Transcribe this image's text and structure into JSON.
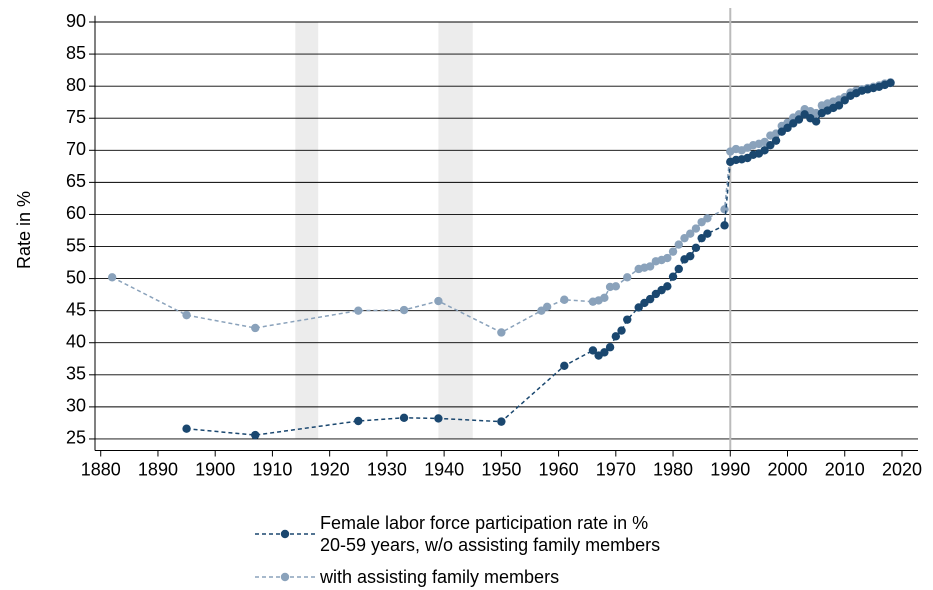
{
  "chart_data": {
    "type": "line",
    "y_label": "Rate in %",
    "xlim": [
      1879,
      2022.8
    ],
    "ylim": [
      23.2,
      90.5
    ],
    "xticks": [
      1880,
      1890,
      1900,
      1910,
      1920,
      1930,
      1940,
      1950,
      1960,
      1970,
      1980,
      1990,
      2000,
      2010,
      2020
    ],
    "yticks": [
      25,
      30,
      35,
      40,
      45,
      50,
      55,
      60,
      65,
      70,
      75,
      80,
      85,
      90
    ],
    "grid": true,
    "shaded_periods": [
      [
        1914,
        1918
      ],
      [
        1939,
        1945
      ]
    ],
    "shade_color": "#ececec",
    "vline": 1990,
    "vline_color": "#bbbbbb",
    "legend_position": "bottom",
    "series": [
      {
        "name": "Female labor force participation rate in %\n20-59 years, w/o assisting family members",
        "color": "#1a476f",
        "x": [
          1895,
          1907,
          1925,
          1933,
          1939,
          1950,
          1961,
          1966,
          1967,
          1968,
          1969,
          1970,
          1971,
          1972,
          1974,
          1975,
          1976,
          1977,
          1978,
          1979,
          1980,
          1981,
          1982,
          1983,
          1984,
          1985,
          1986,
          1989,
          1990,
          1991,
          1992,
          1993,
          1994,
          1995,
          1996,
          1997,
          1998,
          1999,
          2000,
          2001,
          2002,
          2003,
          2004,
          2005,
          2006,
          2007,
          2008,
          2009,
          2010,
          2011,
          2012,
          2013,
          2014,
          2015,
          2016,
          2017,
          2018
        ],
        "values": [
          26.6,
          25.6,
          27.8,
          28.3,
          28.2,
          27.7,
          36.4,
          38.8,
          38.0,
          38.5,
          39.3,
          41.0,
          41.9,
          43.6,
          45.5,
          46.2,
          46.8,
          47.6,
          48.2,
          48.8,
          50.3,
          51.5,
          53.0,
          53.5,
          54.8,
          56.3,
          57.0,
          58.3,
          68.2,
          68.5,
          68.6,
          68.8,
          69.3,
          69.5,
          70.0,
          70.8,
          71.5,
          72.9,
          73.5,
          74.2,
          74.8,
          75.6,
          75.0,
          74.5,
          75.8,
          76.2,
          76.6,
          77.0,
          77.8,
          78.5,
          78.9,
          79.3,
          79.5,
          79.7,
          79.9,
          80.2,
          80.5
        ]
      },
      {
        "name": "with assisting family members",
        "color": "#8aa2bb",
        "x": [
          1882,
          1895,
          1907,
          1925,
          1933,
          1939,
          1950,
          1957,
          1958,
          1961,
          1966,
          1967,
          1968,
          1969,
          1970,
          1972,
          1974,
          1975,
          1976,
          1977,
          1978,
          1979,
          1980,
          1981,
          1982,
          1983,
          1984,
          1985,
          1986,
          1989,
          1990,
          1991,
          1992,
          1993,
          1994,
          1995,
          1996,
          1997,
          1998,
          1999,
          2000,
          2001,
          2002,
          2003,
          2004,
          2005,
          2006,
          2007,
          2008,
          2009,
          2010,
          2011,
          2012,
          2013,
          2014,
          2015,
          2016,
          2017,
          2018
        ],
        "values": [
          50.2,
          44.3,
          42.3,
          45.0,
          45.1,
          46.5,
          41.6,
          45.0,
          45.6,
          46.7,
          46.4,
          46.6,
          47.0,
          48.7,
          48.8,
          50.2,
          51.5,
          51.7,
          51.9,
          52.7,
          52.9,
          53.2,
          54.2,
          55.3,
          56.3,
          57.0,
          57.8,
          58.8,
          59.4,
          60.8,
          69.8,
          70.2,
          70.0,
          70.4,
          70.8,
          71.0,
          71.3,
          72.3,
          72.6,
          73.8,
          74.3,
          75.1,
          75.6,
          76.4,
          76.1,
          75.8,
          77.0,
          77.3,
          77.6,
          77.9,
          78.3,
          79.0,
          79.3,
          79.5,
          79.7,
          79.9,
          80.1,
          80.4,
          80.6
        ]
      }
    ]
  }
}
